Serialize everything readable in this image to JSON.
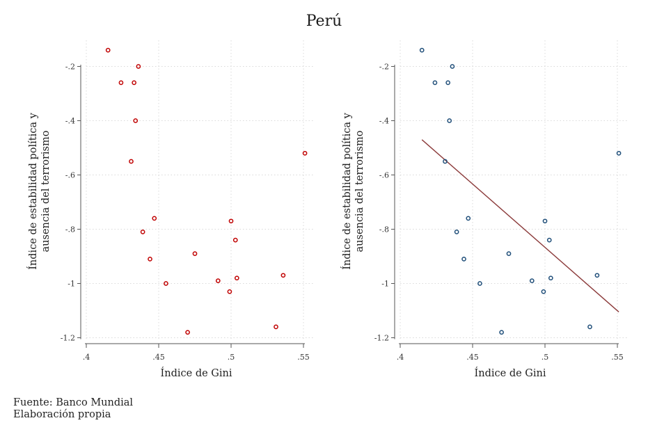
{
  "title": "Perú",
  "footer": {
    "source": "Fuente: Banco Mundial",
    "note": "Elaboración propia"
  },
  "colors": {
    "left_markers": "#c00000",
    "right_markers": "#1f4e79",
    "fit_line": "#8b3a3a",
    "grid": "#d9d9d9"
  },
  "chart_data": [
    {
      "type": "scatter",
      "xlabel": "Índice de Gini",
      "ylabel": [
        "Índice de estabilidad política y",
        "ausencia del terrorismo"
      ],
      "xlim": [
        0.4,
        0.55
      ],
      "ylim": [
        -1.2,
        -0.13
      ],
      "xticks": [
        0.4,
        0.45,
        0.5,
        0.55
      ],
      "xtick_labels": [
        ".4",
        ".45",
        ".5",
        ".55"
      ],
      "yticks": [
        -0.2,
        -0.4,
        -0.6,
        -0.8,
        -1.0,
        -1.2
      ],
      "ytick_labels": [
        "-.2",
        "-.4",
        "-.6",
        "-.8",
        "-1",
        "-1.2"
      ],
      "grid": true,
      "points": [
        {
          "x": 0.415,
          "y": -0.14
        },
        {
          "x": 0.436,
          "y": -0.2
        },
        {
          "x": 0.424,
          "y": -0.26
        },
        {
          "x": 0.433,
          "y": -0.26
        },
        {
          "x": 0.434,
          "y": -0.4
        },
        {
          "x": 0.551,
          "y": -0.52
        },
        {
          "x": 0.431,
          "y": -0.55
        },
        {
          "x": 0.447,
          "y": -0.76
        },
        {
          "x": 0.5,
          "y": -0.77
        },
        {
          "x": 0.439,
          "y": -0.81
        },
        {
          "x": 0.503,
          "y": -0.84
        },
        {
          "x": 0.475,
          "y": -0.89
        },
        {
          "x": 0.444,
          "y": -0.91
        },
        {
          "x": 0.536,
          "y": -0.97
        },
        {
          "x": 0.504,
          "y": -0.98
        },
        {
          "x": 0.491,
          "y": -0.99
        },
        {
          "x": 0.455,
          "y": -1.0
        },
        {
          "x": 0.499,
          "y": -1.03
        },
        {
          "x": 0.531,
          "y": -1.16
        },
        {
          "x": 0.47,
          "y": -1.18
        }
      ]
    },
    {
      "type": "scatter",
      "xlabel": "Índice de Gini",
      "ylabel": [
        "Índice de estabilidad política y",
        "ausencia del terrorismo"
      ],
      "xlim": [
        0.4,
        0.55
      ],
      "ylim": [
        -1.2,
        -0.13
      ],
      "xticks": [
        0.4,
        0.45,
        0.5,
        0.55
      ],
      "xtick_labels": [
        ".4",
        ".45",
        ".5",
        ".55"
      ],
      "yticks": [
        -0.2,
        -0.4,
        -0.6,
        -0.8,
        -1.0,
        -1.2
      ],
      "ytick_labels": [
        "-.2",
        "-.4",
        "-.6",
        "-.8",
        "-1",
        "-1.2"
      ],
      "grid": true,
      "fit_line": {
        "x": [
          0.415,
          0.551
        ],
        "y": [
          -0.47,
          -1.105
        ]
      },
      "points": [
        {
          "x": 0.415,
          "y": -0.14
        },
        {
          "x": 0.436,
          "y": -0.2
        },
        {
          "x": 0.424,
          "y": -0.26
        },
        {
          "x": 0.433,
          "y": -0.26
        },
        {
          "x": 0.434,
          "y": -0.4
        },
        {
          "x": 0.551,
          "y": -0.52
        },
        {
          "x": 0.431,
          "y": -0.55
        },
        {
          "x": 0.447,
          "y": -0.76
        },
        {
          "x": 0.5,
          "y": -0.77
        },
        {
          "x": 0.439,
          "y": -0.81
        },
        {
          "x": 0.503,
          "y": -0.84
        },
        {
          "x": 0.475,
          "y": -0.89
        },
        {
          "x": 0.444,
          "y": -0.91
        },
        {
          "x": 0.536,
          "y": -0.97
        },
        {
          "x": 0.504,
          "y": -0.98
        },
        {
          "x": 0.491,
          "y": -0.99
        },
        {
          "x": 0.455,
          "y": -1.0
        },
        {
          "x": 0.499,
          "y": -1.03
        },
        {
          "x": 0.531,
          "y": -1.16
        },
        {
          "x": 0.47,
          "y": -1.18
        }
      ]
    }
  ]
}
